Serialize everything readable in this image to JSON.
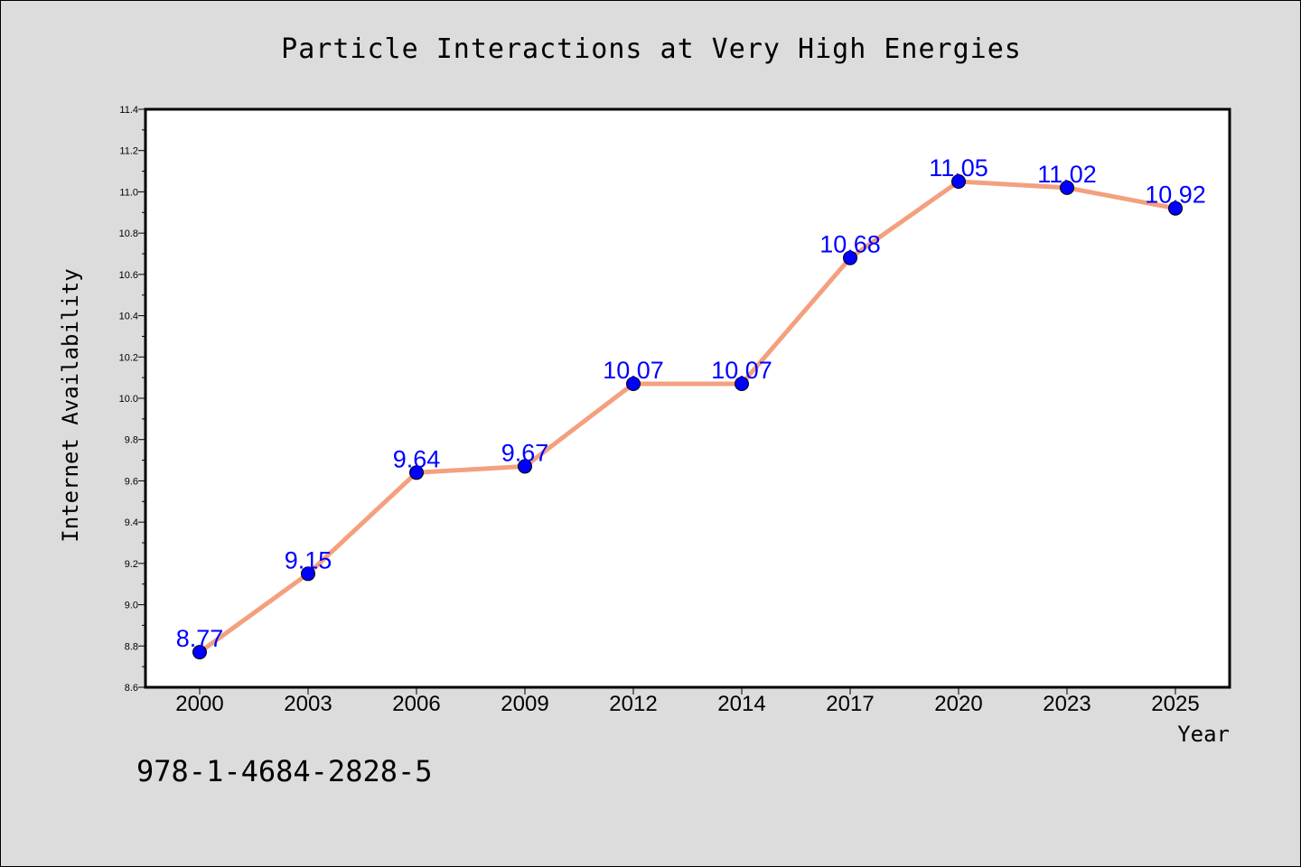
{
  "chart_data": {
    "type": "line",
    "title": "Particle Interactions at Very High Energies",
    "xlabel": "Year",
    "ylabel": "Internet Availability",
    "categories": [
      "2000",
      "2003",
      "2006",
      "2009",
      "2012",
      "2014",
      "2017",
      "2020",
      "2023",
      "2025"
    ],
    "series": [
      {
        "values": [
          8.77,
          9.15,
          9.64,
          9.67,
          10.07,
          10.07,
          10.68,
          11.05,
          11.02,
          10.92
        ],
        "data_labels": [
          "8.77",
          "9.15",
          "9.64",
          "9.67",
          "10.07",
          "10.07",
          "10.68",
          "11.05",
          "11.02",
          "10.92"
        ]
      }
    ],
    "ylim": [
      8.6,
      11.4
    ],
    "y_ticks": [
      "8.6",
      "8.8",
      "9.0",
      "9.2",
      "9.4",
      "9.6",
      "9.8",
      "10.0",
      "10.2",
      "10.4",
      "10.6",
      "10.8",
      "11.0",
      "11.2",
      "11.4"
    ],
    "grid": false,
    "line_color": "#f4a07e",
    "marker_color": "#0000ff",
    "data_label_color": "#0000ff",
    "plot_background": "#ffffff",
    "figure_background": "#dcdcdc"
  },
  "annotation": {
    "isbn": "978-1-4684-2828-5"
  }
}
